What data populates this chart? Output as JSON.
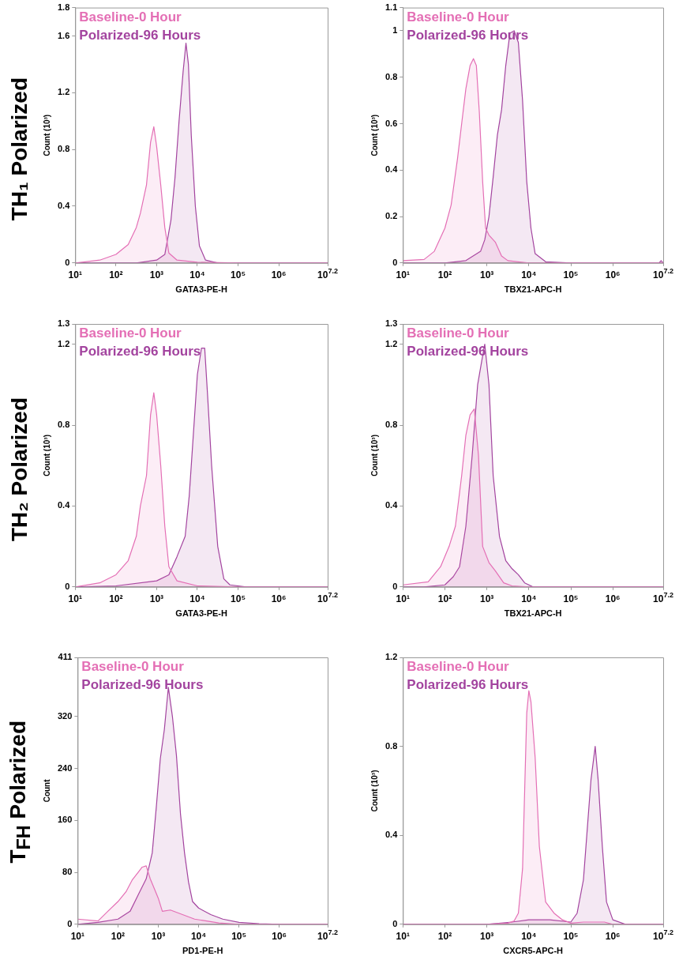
{
  "chart_data": [
    {
      "type": "area",
      "title": "TH₁ Polarized",
      "xlabel": "GATA3-PE-H",
      "ylabel": "Count (10³)",
      "log": "x",
      "legend": "top left",
      "xlim": [
        10,
        15848932
      ],
      "xticks": [
        {
          "value": 10,
          "label": "10¹"
        },
        {
          "value": 100,
          "label": "10²"
        },
        {
          "value": 1000,
          "label": "10³"
        },
        {
          "value": 10000,
          "label": "10⁴"
        },
        {
          "value": 100000,
          "label": "10⁵"
        },
        {
          "value": 1000000,
          "label": "10⁶"
        },
        {
          "value": 15848932,
          "label": "10$^{7.2}$"
        }
      ],
      "ylim": [
        0,
        1.8
      ],
      "yticks": [
        0,
        0.4,
        0.8,
        1.2,
        1.6,
        1.8
      ],
      "series": [
        {
          "name": "Baseline-0 Hour",
          "color": "#e46fb5",
          "x": [
            10,
            40,
            100,
            200,
            316,
            398,
            562,
            708,
            851,
            1000,
            1259,
            1585,
            1995,
            3162,
            10000,
            100000,
            15848932
          ],
          "values": [
            0,
            0.02,
            0.06,
            0.13,
            0.25,
            0.35,
            0.55,
            0.85,
            0.96,
            0.82,
            0.55,
            0.25,
            0.07,
            0.02,
            0.005,
            0,
            0
          ]
        },
        {
          "name": "Polarized-96 Hours",
          "color": "#a3449f",
          "x": [
            10,
            316,
            1000,
            1585,
            2239,
            2818,
            3548,
            4467,
            5248,
            6026,
            7079,
            8913,
            11220,
            15849,
            31623,
            15848932
          ],
          "values": [
            0,
            0,
            0.02,
            0.06,
            0.3,
            0.6,
            1.0,
            1.35,
            1.55,
            1.4,
            0.9,
            0.4,
            0.12,
            0.02,
            0,
            0
          ]
        }
      ]
    },
    {
      "type": "area",
      "xlabel": "TBX21-APC-H",
      "ylabel": "Count (10³)",
      "log": "x",
      "legend": "top left",
      "xlim": [
        10,
        15848932
      ],
      "xticks": [
        {
          "value": 10,
          "label": "10¹"
        },
        {
          "value": 100,
          "label": "10²"
        },
        {
          "value": 1000,
          "label": "10³"
        },
        {
          "value": 10000,
          "label": "10⁴"
        },
        {
          "value": 100000,
          "label": "10⁵"
        },
        {
          "value": 1000000,
          "label": "10⁶"
        },
        {
          "value": 15848932,
          "label": "10$^{7.2}$"
        }
      ],
      "ylim": [
        0,
        1.1
      ],
      "yticks": [
        0,
        0.2,
        0.4,
        0.6,
        0.8,
        1,
        1.1
      ],
      "series": [
        {
          "name": "Baseline-0 Hour",
          "color": "#e46fb5",
          "x": [
            10,
            32,
            56,
            100,
            141,
            200,
            251,
            316,
            398,
            479,
            562,
            661,
            794,
            933,
            1122,
            1585,
            2239,
            3162,
            10000,
            15848932
          ],
          "values": [
            0.01,
            0.015,
            0.05,
            0.15,
            0.25,
            0.45,
            0.6,
            0.75,
            0.85,
            0.88,
            0.85,
            0.65,
            0.35,
            0.15,
            0.12,
            0.09,
            0.03,
            0.01,
            0,
            0
          ]
        },
        {
          "name": "Polarized-96 Hours",
          "color": "#a3449f",
          "x": [
            10,
            100,
            316,
            708,
            891,
            1122,
            1413,
            1778,
            2239,
            2818,
            3548,
            4467,
            5623,
            7079,
            8913,
            11220,
            14125,
            25119,
            100000,
            12589254,
            14125375,
            15848932
          ],
          "values": [
            0,
            0,
            0.01,
            0.05,
            0.1,
            0.2,
            0.37,
            0.55,
            0.66,
            0.85,
            0.99,
            1.0,
            0.95,
            0.7,
            0.35,
            0.15,
            0.04,
            0.005,
            0,
            0,
            0.01,
            0
          ]
        }
      ]
    },
    {
      "type": "area",
      "title": "TH₂ Polarized",
      "xlabel": "GATA3-PE-H",
      "ylabel": "Count (10³)",
      "log": "x",
      "legend": "top left",
      "xlim": [
        10,
        15848932
      ],
      "xticks": [
        {
          "value": 10,
          "label": "10¹"
        },
        {
          "value": 100,
          "label": "10²"
        },
        {
          "value": 1000,
          "label": "10³"
        },
        {
          "value": 10000,
          "label": "10⁴"
        },
        {
          "value": 100000,
          "label": "10⁵"
        },
        {
          "value": 1000000,
          "label": "10⁶"
        },
        {
          "value": 15848932,
          "label": "10$^{7.2}$"
        }
      ],
      "ylim": [
        0,
        1.3
      ],
      "yticks": [
        0,
        0.4,
        0.8,
        1.2,
        1.3
      ],
      "series": [
        {
          "name": "Baseline-0 Hour",
          "color": "#e46fb5",
          "x": [
            10,
            40,
            100,
            200,
            316,
            398,
            562,
            708,
            851,
            1000,
            1259,
            1585,
            1995,
            3162,
            10000,
            100000,
            15848932
          ],
          "values": [
            0,
            0.02,
            0.06,
            0.13,
            0.25,
            0.4,
            0.55,
            0.85,
            0.96,
            0.85,
            0.6,
            0.3,
            0.1,
            0.03,
            0.005,
            0,
            0
          ]
        },
        {
          "name": "Polarized-96 Hours",
          "color": "#a3449f",
          "x": [
            10,
            100,
            1000,
            1995,
            3162,
            5012,
            6310,
            7943,
            10000,
            12589,
            15136,
            17783,
            22387,
            31623,
            44668,
            63096,
            158489,
            15848932
          ],
          "values": [
            0,
            0.005,
            0.03,
            0.06,
            0.15,
            0.25,
            0.45,
            0.75,
            1.05,
            1.18,
            1.18,
            0.95,
            0.6,
            0.2,
            0.04,
            0.01,
            0,
            0
          ]
        }
      ]
    },
    {
      "type": "area",
      "xlabel": "TBX21-APC-H",
      "ylabel": "Count (10³)",
      "log": "x",
      "legend": "top left",
      "xlim": [
        10,
        15848932
      ],
      "xticks": [
        {
          "value": 10,
          "label": "10¹"
        },
        {
          "value": 100,
          "label": "10²"
        },
        {
          "value": 1000,
          "label": "10³"
        },
        {
          "value": 10000,
          "label": "10⁴"
        },
        {
          "value": 100000,
          "label": "10⁵"
        },
        {
          "value": 1000000,
          "label": "10⁶"
        },
        {
          "value": 15848932,
          "label": "10$^{7.2}$"
        }
      ],
      "ylim": [
        0,
        1.3
      ],
      "yticks": [
        0,
        0.4,
        0.8,
        1.2,
        1.3
      ],
      "series": [
        {
          "name": "Baseline-0 Hour",
          "color": "#e46fb5",
          "x": [
            10,
            40,
            79,
            126,
            178,
            251,
            316,
            398,
            501,
            631,
            794,
            1122,
            1585,
            2512,
            3981,
            10000,
            15848932
          ],
          "values": [
            0.01,
            0.025,
            0.1,
            0.2,
            0.3,
            0.55,
            0.75,
            0.85,
            0.88,
            0.65,
            0.2,
            0.12,
            0.08,
            0.02,
            0.005,
            0,
            0
          ]
        },
        {
          "name": "Polarized-96 Hours",
          "color": "#a3449f",
          "x": [
            10,
            32,
            100,
            158,
            224,
            316,
            447,
            603,
            759,
            891,
            1122,
            1413,
            1995,
            2818,
            3981,
            5623,
            7943,
            12589,
            15848932
          ],
          "values": [
            0,
            0,
            0.01,
            0.05,
            0.1,
            0.3,
            0.65,
            1.0,
            1.12,
            1.2,
            1.0,
            0.55,
            0.25,
            0.13,
            0.09,
            0.06,
            0.02,
            0,
            0
          ]
        }
      ]
    },
    {
      "type": "area",
      "title": "T$_{FH}$ Polarized",
      "xlabel": "PD1-PE-H",
      "ylabel": "Count",
      "log": "x",
      "legend": "top left",
      "xlim": [
        10,
        15848932
      ],
      "xticks": [
        {
          "value": 10,
          "label": "10¹"
        },
        {
          "value": 100,
          "label": "10²"
        },
        {
          "value": 1000,
          "label": "10³"
        },
        {
          "value": 10000,
          "label": "10⁴"
        },
        {
          "value": 100000,
          "label": "10⁵"
        },
        {
          "value": 1000000,
          "label": "10⁶"
        },
        {
          "value": 15848932,
          "label": "10$^{7.2}$"
        }
      ],
      "ylim": [
        0,
        411
      ],
      "yticks": [
        0,
        80,
        160,
        240,
        320,
        411
      ],
      "series": [
        {
          "name": "Baseline-0 Hour",
          "color": "#e46fb5",
          "x": [
            10,
            32,
            56,
            100,
            158,
            224,
            316,
            398,
            501,
            631,
            794,
            1000,
            1259,
            1995,
            3981,
            7943,
            15849,
            31623,
            100000,
            15848932
          ],
          "values": [
            8,
            5,
            20,
            35,
            50,
            68,
            80,
            88,
            90,
            70,
            55,
            40,
            20,
            22,
            15,
            8,
            5,
            2,
            0,
            0
          ]
        },
        {
          "name": "Polarized-96 Hours",
          "color": "#a3449f",
          "x": [
            10,
            32,
            100,
            200,
            316,
            501,
            708,
            891,
            1122,
            1413,
            1778,
            2239,
            2818,
            3548,
            4467,
            5623,
            7079,
            10000,
            19953,
            39811,
            100000,
            316228,
            1000000,
            15848932
          ],
          "values": [
            0,
            3,
            8,
            20,
            45,
            70,
            110,
            180,
            255,
            300,
            365,
            320,
            260,
            170,
            110,
            65,
            35,
            25,
            15,
            8,
            3,
            1,
            0,
            0
          ]
        }
      ]
    },
    {
      "type": "area",
      "xlabel": "CXCR5-APC-H",
      "ylabel": "Count (10³)",
      "log": "x",
      "legend": "top left",
      "xlim": [
        10,
        15848932
      ],
      "xticks": [
        {
          "value": 10,
          "label": "10¹"
        },
        {
          "value": 100,
          "label": "10²"
        },
        {
          "value": 1000,
          "label": "10³"
        },
        {
          "value": 10000,
          "label": "10⁴"
        },
        {
          "value": 100000,
          "label": "10⁵"
        },
        {
          "value": 1000000,
          "label": "10⁶"
        },
        {
          "value": 15848932,
          "label": "10$^{7.2}$"
        }
      ],
      "ylim": [
        0,
        1.2
      ],
      "yticks": [
        0,
        0.4,
        0.8,
        1.2
      ],
      "series": [
        {
          "name": "Baseline-0 Hour",
          "color": "#e46fb5",
          "x": [
            10,
            1000,
            3162,
            4467,
            5623,
            7079,
            7943,
            8913,
            10000,
            11220,
            14125,
            17783,
            25119,
            39811,
            63096,
            100000,
            199526,
            630957,
            1000000,
            15848932
          ],
          "values": [
            0,
            0,
            0.005,
            0.015,
            0.05,
            0.25,
            0.6,
            0.95,
            1.05,
            1.0,
            0.75,
            0.35,
            0.1,
            0.05,
            0.02,
            0.005,
            0.01,
            0.01,
            0,
            0
          ]
        },
        {
          "name": "Polarized-96 Hours",
          "color": "#a3449f",
          "x": [
            10,
            1000,
            3981,
            10000,
            31623,
            100000,
            141254,
            199526,
            251189,
            301995,
            380189,
            446684,
            562341,
            707946,
            1000000,
            1995262,
            15848932
          ],
          "values": [
            0,
            0,
            0.01,
            0.02,
            0.02,
            0.01,
            0.05,
            0.2,
            0.45,
            0.65,
            0.8,
            0.65,
            0.35,
            0.1,
            0.02,
            0,
            0
          ]
        }
      ]
    }
  ]
}
